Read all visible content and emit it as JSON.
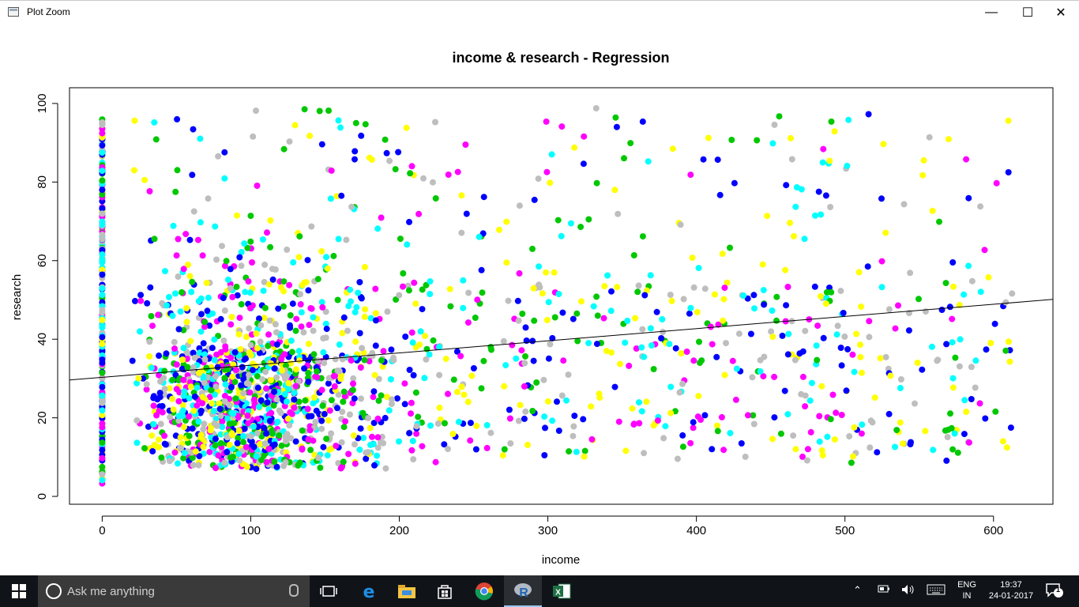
{
  "window": {
    "title": "Plot Zoom",
    "minimize_glyph": "—",
    "maximize_glyph": "☐",
    "close_glyph": "✕"
  },
  "chart_data": {
    "type": "scatter",
    "title": "income & research - Regression",
    "xlabel": "income",
    "ylabel": "research",
    "xlim": [
      -22,
      640
    ],
    "ylim": [
      -2,
      104
    ],
    "x_ticks": [
      0,
      100,
      200,
      300,
      400,
      500,
      600
    ],
    "y_ticks": [
      0,
      20,
      40,
      60,
      80,
      100
    ],
    "point_colors": [
      "#0000ff",
      "#00ffff",
      "#ff00ff",
      "#ffff00",
      "#00c800",
      "#bebebe"
    ],
    "point_count_estimate": 2200,
    "regression_line": {
      "intercept": 30.3,
      "slope": 0.031,
      "color": "#000000"
    },
    "grid": false
  },
  "taskbar": {
    "search_placeholder": "Ask me anything",
    "lang_primary": "ENG",
    "lang_secondary": "IN",
    "time": "19:37",
    "date": "24-01-2017",
    "notification_count": "1",
    "apps": [
      "task-view",
      "edge",
      "file-explorer",
      "store",
      "chrome",
      "r",
      "excel"
    ]
  }
}
